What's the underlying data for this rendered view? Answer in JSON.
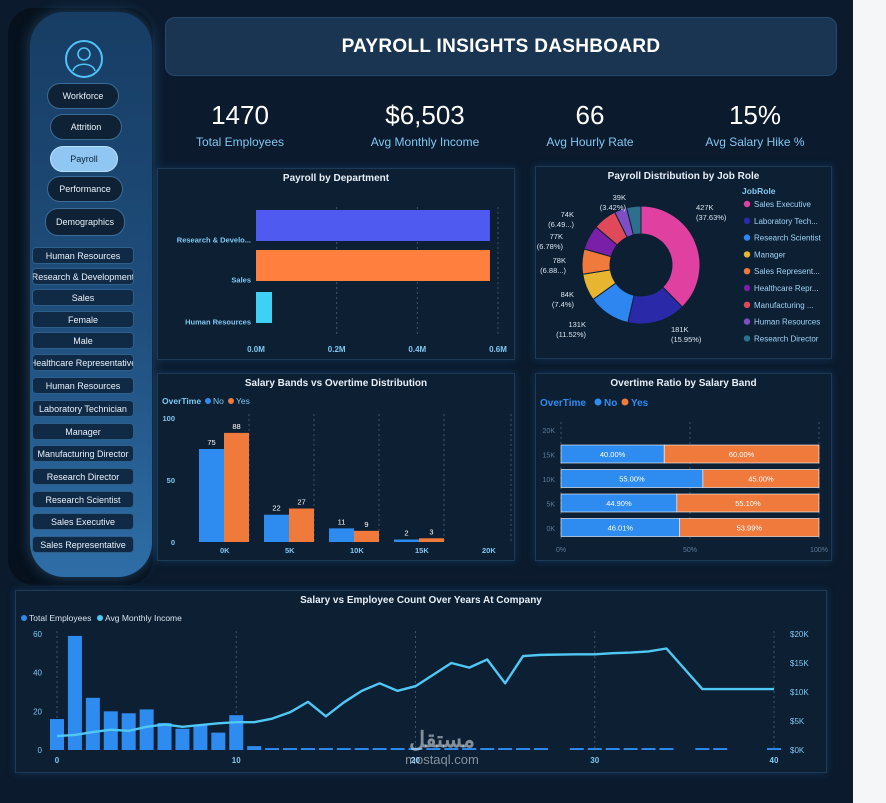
{
  "sidebar": {
    "nav": [
      "Workforce",
      "Attrition",
      "Payroll",
      "Performance",
      "Demographics"
    ],
    "active": "Payroll",
    "filters": [
      "Human Resources",
      "Research & Development",
      "Sales",
      "Female",
      "Male",
      "Healthcare Representative",
      "Human Resources",
      "Laboratory Technician",
      "Manager",
      "Manufacturing Director",
      "Research Director",
      "Research Scientist",
      "Sales Executive",
      "Sales Representative"
    ]
  },
  "header": {
    "title": "PAYROLL INSIGHTS DASHBOARD"
  },
  "kpis": [
    {
      "value": "1470",
      "label": "Total Employees"
    },
    {
      "value": "$6,503",
      "label": "Avg Monthly Income"
    },
    {
      "value": "66",
      "label": "Avg Hourly Rate"
    },
    {
      "value": "15%",
      "label": "Avg Salary Hike %"
    }
  ],
  "watermark": {
    "arabic": "مستقل",
    "latin": "mostaql.com"
  },
  "chart_data": [
    {
      "type": "bar",
      "title": "Payroll by Department",
      "orientation": "horizontal",
      "categories": [
        "Research & Develo...",
        "Sales",
        "Human Resources"
      ],
      "values": [
        0.58,
        0.58,
        0.05
      ],
      "colors": [
        "#4f5bf0",
        "#ff7f3f",
        "#3fd0f5"
      ],
      "xticks": [
        "0.0M",
        "0.2M",
        "0.4M",
        "0.6M"
      ],
      "xlim": [
        0,
        0.6
      ]
    },
    {
      "type": "pie",
      "title": "Payroll Distribution by Job Role",
      "legend_title": "JobRole",
      "slices": [
        {
          "name": "Sales Executive",
          "value": 37.63,
          "label": "427K (37.63%)",
          "color": "#e040a0"
        },
        {
          "name": "Laboratory Tech...",
          "value": 15.95,
          "label": "181K (15.95%)",
          "color": "#2a2aa8"
        },
        {
          "name": "Research Scientist",
          "value": 11.52,
          "label": "131K (11.52%)",
          "color": "#2e86f0"
        },
        {
          "name": "Manager",
          "value": 7.4,
          "label": "84K (7.4%)",
          "color": "#e8b530"
        },
        {
          "name": "Sales Represent...",
          "value": 6.88,
          "label": "78K (6.88...)",
          "color": "#ef7a3c"
        },
        {
          "name": "Healthcare Repr...",
          "value": 6.78,
          "label": "77K (6.78%)",
          "color": "#7a1fa8"
        },
        {
          "name": "Manufacturing ...",
          "value": 6.49,
          "label": "74K (6.49...)",
          "color": "#e0495a"
        },
        {
          "name": "Human Resources",
          "value": 3.42,
          "label": "39K (3.42%)",
          "color": "#7e4fc2"
        },
        {
          "name": "Research Director",
          "value": 3.93,
          "label": "",
          "color": "#2d6f8c"
        }
      ]
    },
    {
      "type": "bar",
      "title": "Salary Bands vs Overtime Distribution",
      "legend_title": "OverTime",
      "categories": [
        "0K",
        "5K",
        "10K",
        "15K",
        "20K"
      ],
      "series": [
        {
          "name": "No",
          "values": [
            75,
            22,
            11,
            2,
            null
          ],
          "color": "#2e8cf0"
        },
        {
          "name": "Yes",
          "values": [
            88,
            27,
            9,
            3,
            null
          ],
          "color": "#ef7a3c"
        }
      ],
      "yticks": [
        "0",
        "50",
        "100"
      ],
      "ylim": [
        0,
        100
      ]
    },
    {
      "type": "bar",
      "title": "Overtime Ratio by Salary Band",
      "legend_title": "OverTime",
      "stacked_percent": true,
      "categories": [
        "15K",
        "10K",
        "5K",
        "0K"
      ],
      "yticks": [
        "20K",
        "15K",
        "10K",
        "5K",
        "0K"
      ],
      "xticks": [
        "0%",
        "50%",
        "100%"
      ],
      "series": [
        {
          "name": "No",
          "values": [
            40.0,
            55.0,
            44.9,
            46.01
          ],
          "labels": [
            "40.00%",
            "55.00%",
            "44.90%",
            "46.01%"
          ],
          "color": "#2e8cf0"
        },
        {
          "name": "Yes",
          "values": [
            60.0,
            45.0,
            55.1,
            53.99
          ],
          "labels": [
            "60.00%",
            "45.00%",
            "55.10%",
            "53.99%"
          ],
          "color": "#ef7a3c"
        }
      ]
    },
    {
      "type": "line",
      "title": "Salary vs Employee Count Over Years At Company",
      "series": [
        {
          "name": "Total Employees",
          "kind": "bar",
          "color": "#2e8cf0",
          "x": [
            0,
            1,
            2,
            3,
            4,
            5,
            6,
            7,
            8,
            9,
            10,
            11,
            12,
            13,
            14,
            15,
            16,
            17,
            18,
            19,
            20,
            21,
            22,
            23,
            24,
            25,
            26,
            27,
            29,
            30,
            31,
            32,
            33,
            34,
            36,
            37,
            40
          ],
          "values": [
            16,
            59,
            27,
            20,
            19,
            21,
            14,
            11,
            13,
            9,
            18,
            2,
            1,
            1,
            1,
            1,
            1,
            1,
            1,
            1,
            1,
            1,
            1,
            1,
            1,
            1,
            1,
            1,
            1,
            1,
            1,
            1,
            1,
            1,
            1,
            1,
            1
          ]
        },
        {
          "name": "Avg Monthly Income",
          "kind": "line",
          "color": "#4fc8f4",
          "x": [
            0,
            1,
            2,
            3,
            4,
            5,
            6,
            7,
            8,
            9,
            10,
            11,
            12,
            13,
            14,
            15,
            16,
            17,
            18,
            19,
            20,
            21,
            22,
            23,
            24,
            25,
            26,
            27,
            29,
            30,
            31,
            32,
            33,
            34,
            36,
            37,
            40
          ],
          "values": [
            2400,
            2600,
            3100,
            3500,
            3300,
            4000,
            4400,
            4000,
            4300,
            4600,
            4800,
            4800,
            5400,
            6500,
            8300,
            5800,
            8200,
            10200,
            11500,
            10200,
            11000,
            13000,
            15000,
            14200,
            15600,
            11500,
            16200,
            16400,
            16500,
            16500,
            16700,
            16800,
            17000,
            17500,
            10500,
            10500,
            10500
          ]
        }
      ],
      "left_yticks": [
        "0",
        "20",
        "40",
        "60"
      ],
      "right_yticks": [
        "$0K",
        "$5K",
        "$10K",
        "$15K",
        "$20K"
      ],
      "xticks": [
        "0",
        "10",
        "20",
        "30",
        "40"
      ],
      "ylim_left": [
        0,
        60
      ],
      "ylim_right": [
        0,
        20000
      ],
      "xlim": [
        0,
        40
      ]
    }
  ]
}
